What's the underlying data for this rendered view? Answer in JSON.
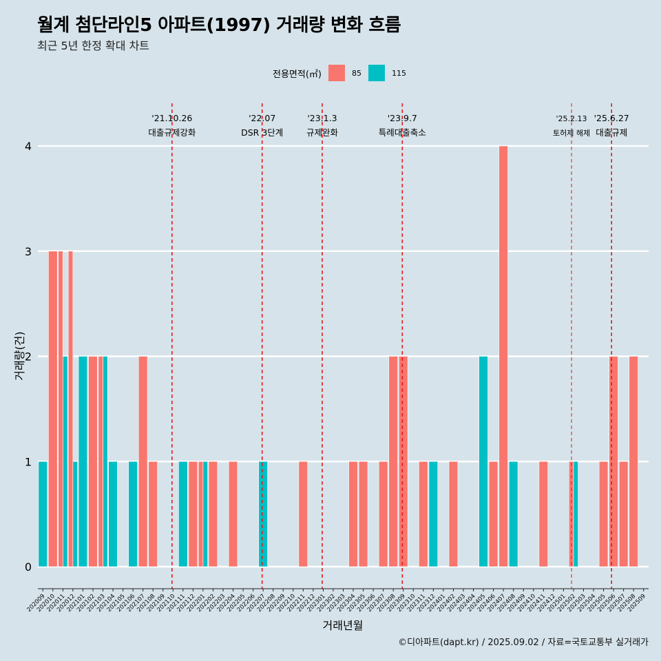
{
  "title": "월계 첨단라인5 아파트(1997) 거래량 변화 흐름",
  "subtitle": "최근 5년 한정 확대 차트",
  "legend": {
    "title": "전용면적(㎡)",
    "items": [
      {
        "label": "85",
        "color": "#f8766d"
      },
      {
        "label": "115",
        "color": "#00bfc4"
      }
    ]
  },
  "caption": "©디아파트(dapt.kr) / 2025.09.02 / 자료=국토교통부 실거래가",
  "chart_data": {
    "type": "bar",
    "stacking": "dodge",
    "xlabel": "거래년월",
    "ylabel": "거래량(건)",
    "ylim": [
      0,
      4
    ],
    "yticks": [
      0,
      1,
      2,
      3,
      4
    ],
    "grid": "horizontal",
    "categories": [
      "202009",
      "202010",
      "202011",
      "202012",
      "202101",
      "202102",
      "202103",
      "202104",
      "202105",
      "202106",
      "202107",
      "202108",
      "202109",
      "202110",
      "202111",
      "202112",
      "202201",
      "202202",
      "202203",
      "202204",
      "202205",
      "202206",
      "202207",
      "202208",
      "202209",
      "202210",
      "202211",
      "202212",
      "202301",
      "202302",
      "202303",
      "202304",
      "202305",
      "202306",
      "202307",
      "202308",
      "202309",
      "202310",
      "202311",
      "202312",
      "202401",
      "202402",
      "202403",
      "202404",
      "202405",
      "202406",
      "202407",
      "202408",
      "202409",
      "202410",
      "202411",
      "202412",
      "202501",
      "202502",
      "202503",
      "202504",
      "202505",
      "202506",
      "202507",
      "202508",
      "202509"
    ],
    "series": [
      {
        "name": "85",
        "color": "#f8766d",
        "values": [
          0,
          3,
          3,
          3,
          0,
          2,
          2,
          0,
          0,
          0,
          2,
          1,
          0,
          0,
          0,
          1,
          1,
          1,
          0,
          1,
          0,
          0,
          0,
          0,
          0,
          0,
          1,
          0,
          0,
          0,
          0,
          1,
          1,
          0,
          1,
          2,
          2,
          0,
          1,
          0,
          0,
          1,
          0,
          0,
          0,
          1,
          4,
          0,
          0,
          0,
          1,
          0,
          0,
          1,
          0,
          0,
          1,
          2,
          1,
          2,
          0
        ]
      },
      {
        "name": "115",
        "color": "#00bfc4",
        "values": [
          1,
          0,
          2,
          1,
          2,
          0,
          2,
          1,
          0,
          1,
          0,
          0,
          0,
          0,
          1,
          0,
          1,
          0,
          0,
          0,
          0,
          0,
          1,
          0,
          0,
          0,
          0,
          0,
          0,
          0,
          0,
          0,
          0,
          0,
          0,
          0,
          0,
          0,
          0,
          1,
          0,
          0,
          0,
          0,
          2,
          0,
          0,
          1,
          0,
          0,
          0,
          0,
          0,
          1,
          0,
          0,
          0,
          0,
          0,
          0,
          0
        ]
      }
    ],
    "annotations": [
      {
        "date_line1": "'21.10.26",
        "date_line2": "대출규제강화",
        "x_index": 13.4
      },
      {
        "date_line1": "'22.07",
        "date_line2": "DSR 3단계",
        "x_index": 22.4
      },
      {
        "date_line1": "'23.1.3",
        "date_line2": "규제완화",
        "x_index": 28.4
      },
      {
        "date_line1": "'23.9.7",
        "date_line2": "특례대출축소",
        "x_index": 36.4
      },
      {
        "date_line1": "'25.2.13",
        "date_line2": "토허제 해제",
        "x_index": 53.3
      },
      {
        "date_line1": "'25.6.27",
        "date_line2": "대출규제",
        "x_index": 57.3
      }
    ]
  }
}
